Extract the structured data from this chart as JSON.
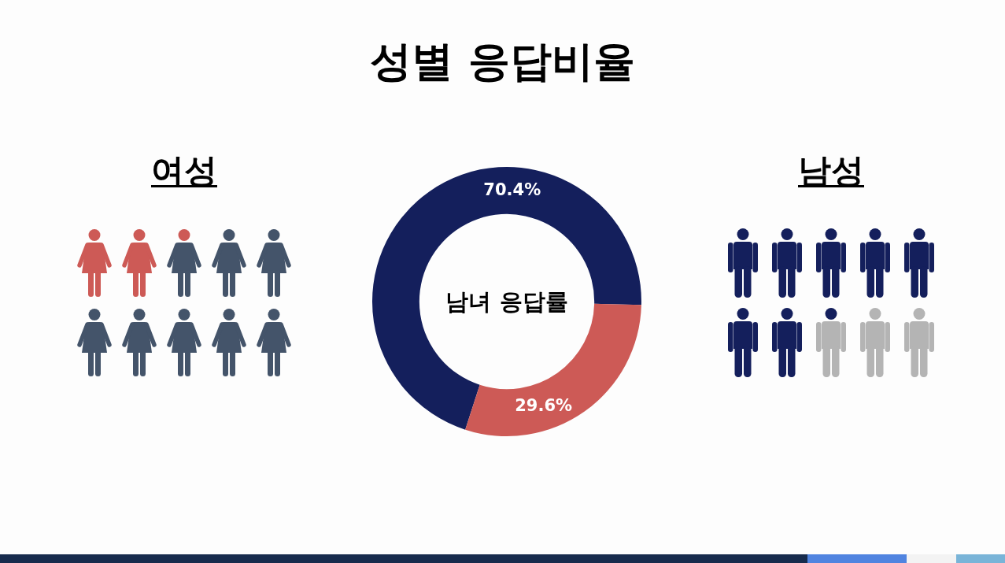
{
  "chart_data": {
    "type": "donut",
    "title": "성별 응답비율",
    "categories": [
      null,
      null
    ],
    "values": [
      70.4,
      29.6
    ],
    "colors": [
      "#141f5c",
      "#cd5a56"
    ],
    "value_labels": [
      "70.4%",
      "29.6%"
    ],
    "annotations": [
      "남녀 응답률",
      "여성",
      "남성"
    ]
  }
}
